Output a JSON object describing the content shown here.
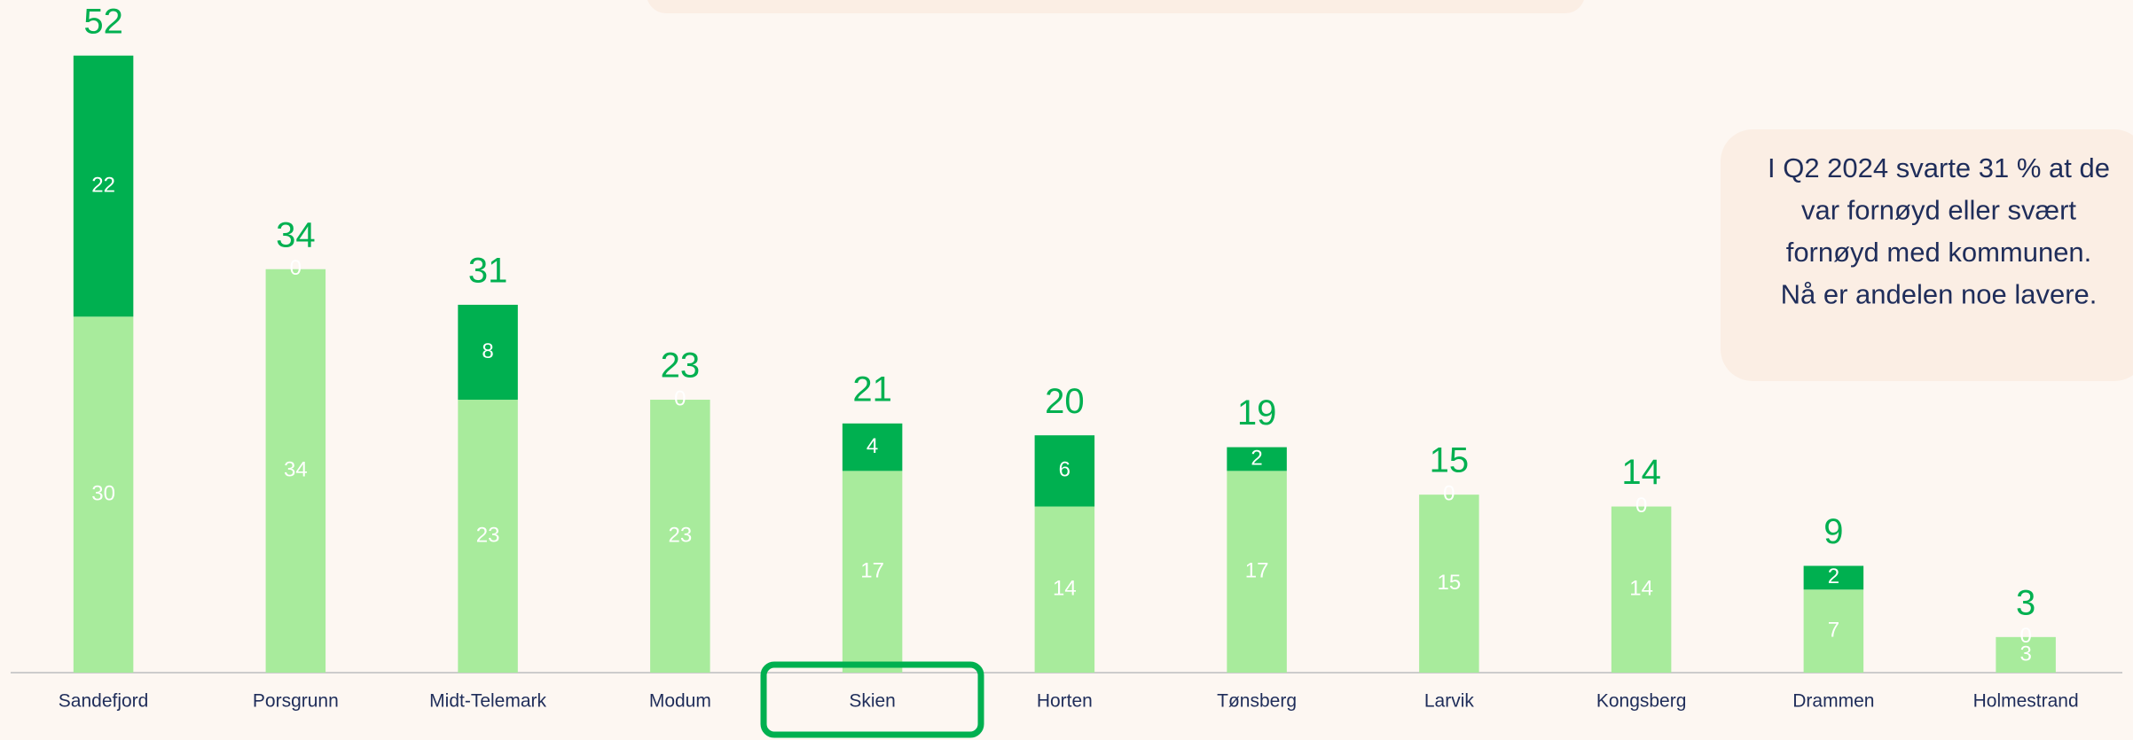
{
  "chart_data": {
    "type": "stacked_bar",
    "categories": [
      "Sandefjord",
      "Porsgrunn",
      "Midt-Telemark",
      "Modum",
      "Skien",
      "Horten",
      "Tønsberg",
      "Larvik",
      "Kongsberg",
      "Drammen",
      "Holmestrand"
    ],
    "series": [
      {
        "color": "#a8eb9c",
        "values": [
          30,
          34,
          23,
          23,
          17,
          14,
          17,
          15,
          14,
          7,
          3
        ]
      },
      {
        "color": "#00b050",
        "values": [
          22,
          0,
          8,
          0,
          4,
          6,
          2,
          0,
          0,
          2,
          0
        ]
      }
    ],
    "totals": [
      52,
      34,
      31,
      23,
      21,
      20,
      19,
      15,
      14,
      9,
      3
    ],
    "annotation": [
      "I Q2 2024 svarte 31 % at de",
      "var fornøyd eller svært",
      "fornøyd med kommunen.",
      "Nå er andelen noe lavere."
    ]
  }
}
